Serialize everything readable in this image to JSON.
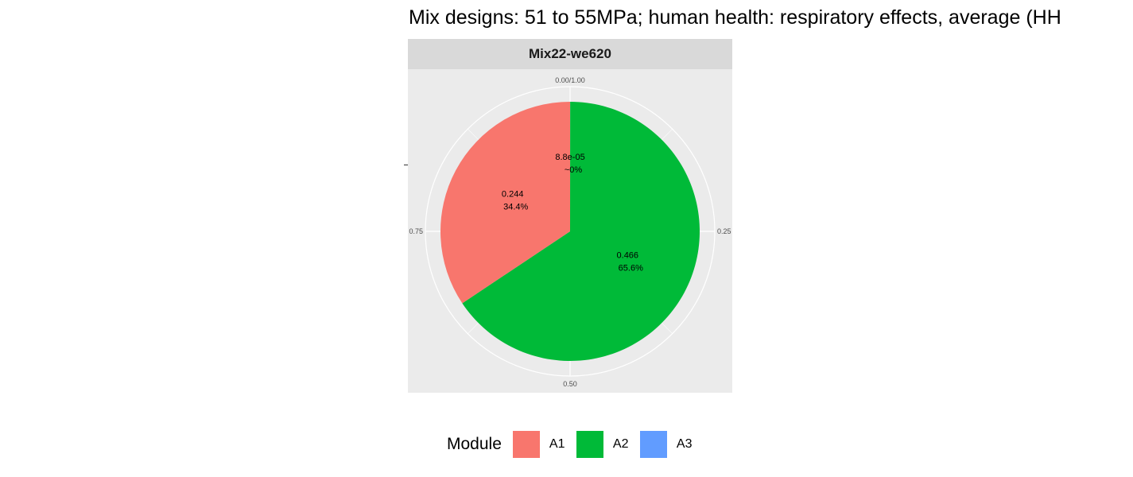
{
  "chart_data": {
    "type": "pie",
    "title": "Mix designs: 51 to 55MPa; human health: respiratory effects, average (HH",
    "facet": "Mix22-we620",
    "angular_ticks": [
      "0.00/1.00",
      "0.25",
      "0.50",
      "0.75"
    ],
    "angular_tick_values": [
      0,
      0.25,
      0.5,
      0.75
    ],
    "slices": [
      {
        "name": "A3",
        "value": 8.8e-05,
        "fraction": 0.0,
        "label_value": "8.8e-05",
        "label_pct": "~0%",
        "color": "#619CFF"
      },
      {
        "name": "A2",
        "value": 0.466,
        "fraction": 0.656,
        "label_value": "0.466",
        "label_pct": "65.6%",
        "color": "#00BA38"
      },
      {
        "name": "A1",
        "value": 0.244,
        "fraction": 0.344,
        "label_value": "0.244",
        "label_pct": "34.4%",
        "color": "#F8766D"
      }
    ],
    "legend": {
      "title": "Module",
      "placement": "bottom",
      "entries": [
        {
          "label": "A1",
          "color": "#F8766D"
        },
        {
          "label": "A2",
          "color": "#00BA38"
        },
        {
          "label": "A3",
          "color": "#619CFF"
        }
      ]
    },
    "panel_background": "#ebebeb",
    "strip_background": "#d9d9d9",
    "grid_color": "#ffffff"
  }
}
